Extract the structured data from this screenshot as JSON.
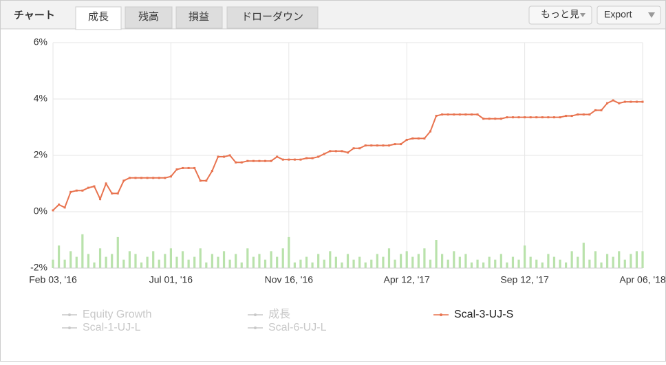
{
  "ui": {
    "label": "チャート",
    "tabs": [
      "成長",
      "残高",
      "損益",
      "ドローダウン"
    ],
    "buttons": [
      "もっと見",
      "Export"
    ]
  },
  "chart_data": {
    "type": "line",
    "categories": [
      "Feb 03, '16",
      null,
      null,
      null,
      null,
      null,
      null,
      null,
      null,
      null,
      null,
      null,
      null,
      null,
      null,
      null,
      null,
      null,
      null,
      null,
      "Jul 01, '16",
      null,
      null,
      null,
      null,
      null,
      null,
      null,
      null,
      null,
      null,
      null,
      null,
      null,
      null,
      null,
      null,
      null,
      null,
      null,
      "Nov 16, '16",
      null,
      null,
      null,
      null,
      null,
      null,
      null,
      null,
      null,
      null,
      null,
      null,
      null,
      null,
      null,
      null,
      null,
      null,
      null,
      "Apr 12, '17",
      null,
      null,
      null,
      null,
      null,
      null,
      null,
      null,
      null,
      null,
      null,
      null,
      null,
      null,
      null,
      null,
      null,
      null,
      null,
      "Sep 12, '17",
      null,
      null,
      null,
      null,
      null,
      null,
      null,
      null,
      null,
      null,
      null,
      null,
      null,
      null,
      null,
      null,
      null,
      null,
      null,
      "Apr 06, '18"
    ],
    "series": [
      {
        "name": "Scal-3-UJ-S",
        "color": "#e8734f",
        "values": [
          0.05,
          0.25,
          0.15,
          0.7,
          0.75,
          0.75,
          0.85,
          0.9,
          0.45,
          1.0,
          0.65,
          0.65,
          1.1,
          1.2,
          1.2,
          1.2,
          1.2,
          1.2,
          1.2,
          1.2,
          1.25,
          1.5,
          1.55,
          1.55,
          1.55,
          1.1,
          1.1,
          1.45,
          1.95,
          1.95,
          2.0,
          1.75,
          1.75,
          1.8,
          1.8,
          1.8,
          1.8,
          1.8,
          1.95,
          1.85,
          1.85,
          1.85,
          1.85,
          1.9,
          1.9,
          1.95,
          2.05,
          2.15,
          2.15,
          2.15,
          2.1,
          2.25,
          2.25,
          2.35,
          2.35,
          2.35,
          2.35,
          2.35,
          2.4,
          2.4,
          2.55,
          2.6,
          2.6,
          2.6,
          2.85,
          3.4,
          3.45,
          3.45,
          3.45,
          3.45,
          3.45,
          3.45,
          3.45,
          3.3,
          3.3,
          3.3,
          3.3,
          3.35,
          3.35,
          3.35,
          3.35,
          3.35,
          3.35,
          3.35,
          3.35,
          3.35,
          3.35,
          3.4,
          3.4,
          3.45,
          3.45,
          3.45,
          3.6,
          3.6,
          3.85,
          3.95,
          3.85,
          3.9,
          3.9,
          3.9,
          3.9
        ]
      },
      {
        "type": "bar",
        "color": "#b9e2ab",
        "values": [
          -1.7,
          -1.2,
          -1.7,
          -1.4,
          -1.6,
          -0.8,
          -1.5,
          -1.8,
          -1.3,
          -1.6,
          -1.5,
          -0.9,
          -1.7,
          -1.4,
          -1.5,
          -1.8,
          -1.6,
          -1.4,
          -1.7,
          -1.5,
          -1.3,
          -1.6,
          -1.4,
          -1.7,
          -1.6,
          -1.3,
          -1.8,
          -1.5,
          -1.6,
          -1.4,
          -1.7,
          -1.5,
          -1.8,
          -1.3,
          -1.6,
          -1.5,
          -1.7,
          -1.4,
          -1.6,
          -1.3,
          -0.9,
          -1.8,
          -1.7,
          -1.6,
          -1.8,
          -1.5,
          -1.7,
          -1.4,
          -1.6,
          -1.8,
          -1.5,
          -1.7,
          -1.6,
          -1.8,
          -1.7,
          -1.5,
          -1.6,
          -1.3,
          -1.7,
          -1.5,
          -1.4,
          -1.6,
          -1.5,
          -1.3,
          -1.7,
          -1.0,
          -1.5,
          -1.7,
          -1.4,
          -1.6,
          -1.5,
          -1.8,
          -1.7,
          -1.8,
          -1.6,
          -1.7,
          -1.5,
          -1.8,
          -1.6,
          -1.7,
          -1.2,
          -1.6,
          -1.7,
          -1.8,
          -1.5,
          -1.6,
          -1.7,
          -1.8,
          -1.4,
          -1.6,
          -1.1,
          -1.7,
          -1.4,
          -1.8,
          -1.5,
          -1.6,
          -1.4,
          -1.7,
          -1.5,
          -1.4,
          -1.4
        ]
      }
    ],
    "hidden_series": [
      "Equity Growth",
      "Scal-1-UJ-L",
      "成長",
      "Scal-6-UJ-L"
    ],
    "hidden_color": "#c8c8c8",
    "ylim": [
      -2,
      6
    ],
    "yticks": [
      {
        "value": -2,
        "label": "-2%"
      },
      {
        "value": 0,
        "label": "0%"
      },
      {
        "value": 2,
        "label": "2%"
      },
      {
        "value": 4,
        "label": "4%"
      },
      {
        "value": 6,
        "label": "6%"
      }
    ],
    "grid": true
  }
}
